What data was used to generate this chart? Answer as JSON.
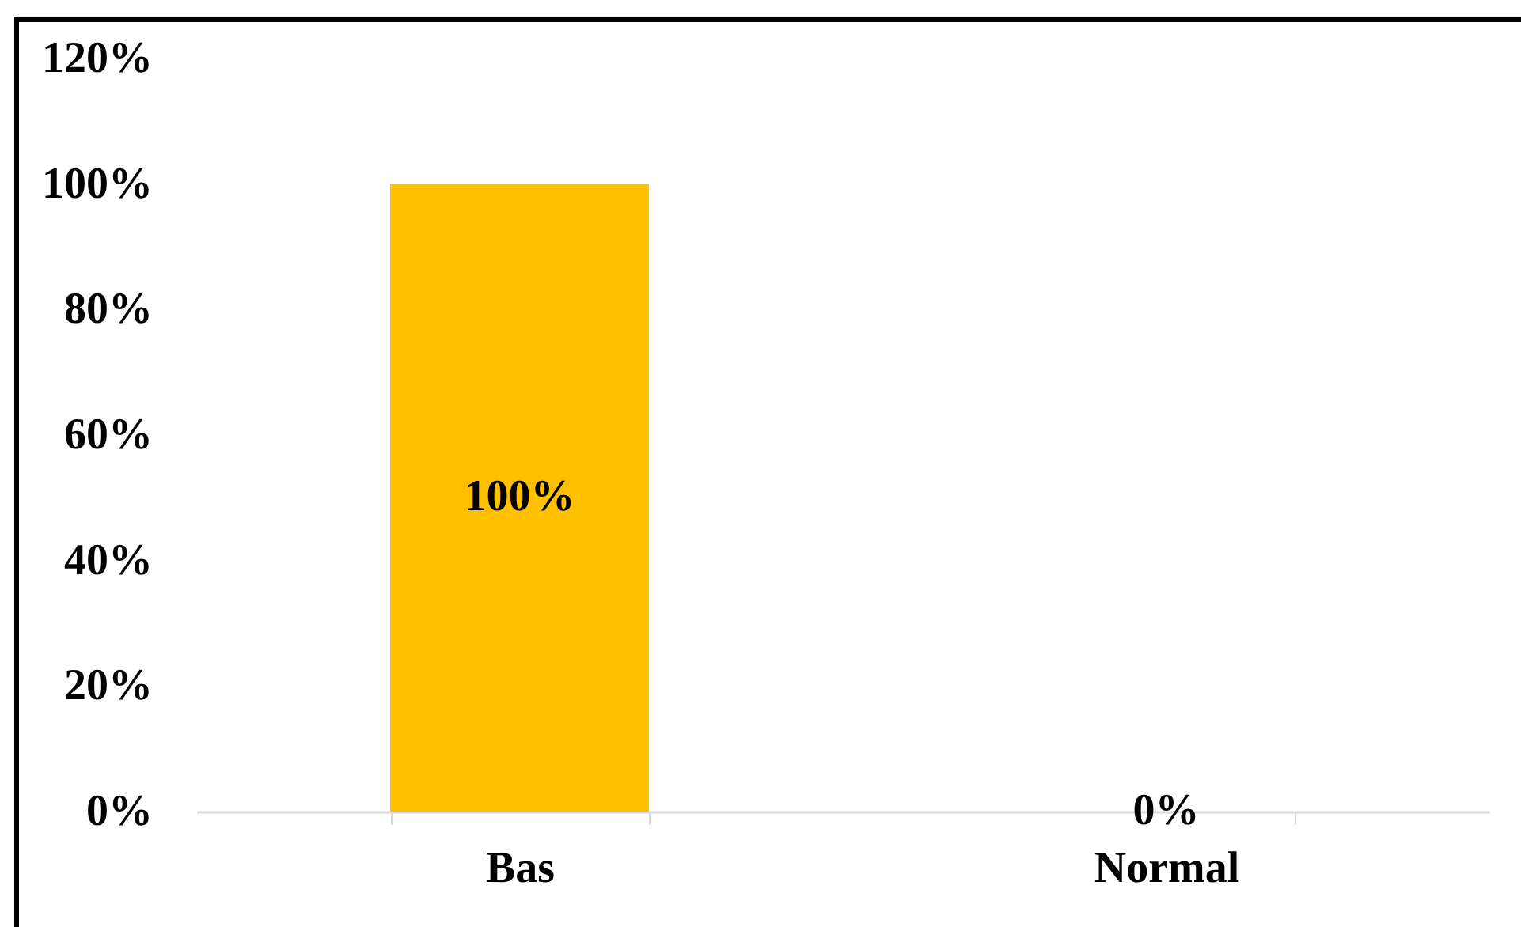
{
  "chart_data": {
    "type": "bar",
    "categories": [
      "Bas",
      "Normal"
    ],
    "values": [
      100,
      0
    ],
    "color": "#ffc000",
    "value_labels": [
      "100%",
      "0%"
    ],
    "ylim": [
      0,
      120
    ],
    "yticks": [
      {
        "value": 0,
        "label": "0%"
      },
      {
        "value": 20,
        "label": "20%"
      },
      {
        "value": 40,
        "label": "40%"
      },
      {
        "value": 60,
        "label": "60%"
      },
      {
        "value": 80,
        "label": "80%"
      },
      {
        "value": 100,
        "label": "100%"
      },
      {
        "value": 120,
        "label": "120%"
      }
    ],
    "grid": false
  }
}
